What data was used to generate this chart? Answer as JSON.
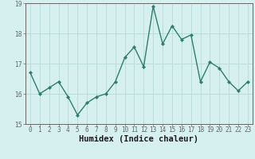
{
  "title": "",
  "xlabel": "Humidex (Indice chaleur)",
  "ylabel": "",
  "x_values": [
    0,
    1,
    2,
    3,
    4,
    5,
    6,
    7,
    8,
    9,
    10,
    11,
    12,
    13,
    14,
    15,
    16,
    17,
    18,
    19,
    20,
    21,
    22,
    23
  ],
  "y_values": [
    16.7,
    16.0,
    16.2,
    16.4,
    15.9,
    15.3,
    15.7,
    15.9,
    16.0,
    16.4,
    17.2,
    17.55,
    16.9,
    18.9,
    17.65,
    18.25,
    17.8,
    17.95,
    16.4,
    17.05,
    16.85,
    16.4,
    16.1,
    16.4
  ],
  "line_color": "#2e7d6e",
  "marker": "D",
  "marker_size": 2.2,
  "bg_color": "#d6f0f0",
  "grid_color": "#b8d8d8",
  "axis_color": "#666666",
  "ylim": [
    15.0,
    19.0
  ],
  "xlim": [
    -0.5,
    23.5
  ],
  "yticks": [
    15,
    16,
    17,
    18,
    19
  ],
  "xticks": [
    0,
    1,
    2,
    3,
    4,
    5,
    6,
    7,
    8,
    9,
    10,
    11,
    12,
    13,
    14,
    15,
    16,
    17,
    18,
    19,
    20,
    21,
    22,
    23
  ],
  "xtick_labels": [
    "0",
    "1",
    "2",
    "3",
    "4",
    "5",
    "6",
    "7",
    "8",
    "9",
    "10",
    "11",
    "12",
    "13",
    "14",
    "15",
    "16",
    "17",
    "18",
    "19",
    "20",
    "21",
    "22",
    "23"
  ],
  "tick_fontsize": 5.5,
  "xlabel_fontsize": 7.5,
  "line_width": 1.0
}
